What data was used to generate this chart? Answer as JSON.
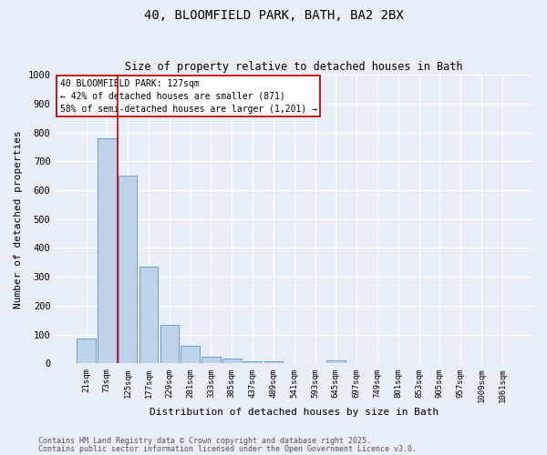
{
  "title_line1": "40, BLOOMFIELD PARK, BATH, BA2 2BX",
  "title_line2": "Size of property relative to detached houses in Bath",
  "xlabel": "Distribution of detached houses by size in Bath",
  "ylabel": "Number of detached properties",
  "categories": [
    "21sqm",
    "73sqm",
    "125sqm",
    "177sqm",
    "229sqm",
    "281sqm",
    "333sqm",
    "385sqm",
    "437sqm",
    "489sqm",
    "541sqm",
    "593sqm",
    "645sqm",
    "697sqm",
    "749sqm",
    "801sqm",
    "853sqm",
    "905sqm",
    "957sqm",
    "1009sqm",
    "1061sqm"
  ],
  "values": [
    85,
    780,
    650,
    335,
    135,
    60,
    22,
    17,
    8,
    8,
    0,
    0,
    10,
    0,
    0,
    0,
    0,
    0,
    0,
    0,
    0
  ],
  "bar_color": "#bed3ea",
  "bar_edge_color": "#6a9fcb",
  "background_color": "#e8eef7",
  "grid_color": "#ffffff",
  "ylim": [
    0,
    1000
  ],
  "yticks": [
    0,
    100,
    200,
    300,
    400,
    500,
    600,
    700,
    800,
    900,
    1000
  ],
  "redline_index": 2,
  "annotation_title": "40 BLOOMFIELD PARK: 127sqm",
  "annotation_line2": "← 42% of detached houses are smaller (871)",
  "annotation_line3": "58% of semi-detached houses are larger (1,201) →",
  "annotation_box_color": "#ffffff",
  "annotation_border_color": "#cc0000",
  "footer_line1": "Contains HM Land Registry data © Crown copyright and database right 2025.",
  "footer_line2": "Contains public sector information licensed under the Open Government Licence v3.0.",
  "figsize": [
    6.0,
    5.0
  ],
  "dpi": 100
}
